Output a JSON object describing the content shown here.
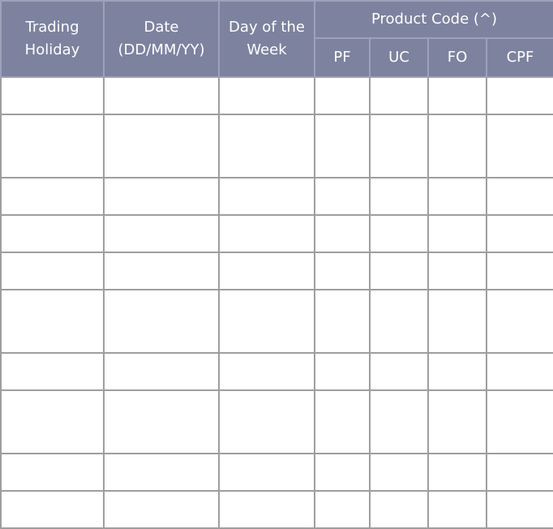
{
  "header": {
    "trading_holiday": "Trading Holiday",
    "date": "Date (DD/MM/YY)",
    "day_of_week": "Day of the Week",
    "product_code": "Product Code (^)",
    "product_codes": [
      "PF",
      "UC",
      "FO",
      "CPF"
    ]
  },
  "rows": [
    [
      "",
      "",
      "",
      "",
      "",
      "",
      ""
    ],
    [
      "",
      "",
      "",
      "",
      "",
      "",
      ""
    ],
    [
      "",
      "",
      "",
      "",
      "",
      "",
      ""
    ],
    [
      "",
      "",
      "",
      "",
      "",
      "",
      ""
    ],
    [
      "",
      "",
      "",
      "",
      "",
      "",
      ""
    ],
    [
      "",
      "",
      "",
      "",
      "",
      "",
      ""
    ],
    [
      "",
      "",
      "",
      "",
      "",
      "",
      ""
    ],
    [
      "",
      "",
      "",
      "",
      "",
      "",
      ""
    ],
    [
      "",
      "",
      "",
      "",
      "",
      "",
      ""
    ],
    [
      "",
      "",
      "",
      "",
      "",
      "",
      ""
    ]
  ],
  "colors": {
    "header_bg": "#7d829f",
    "grid": "#9e9e9e",
    "header_text": "#ffffff"
  }
}
